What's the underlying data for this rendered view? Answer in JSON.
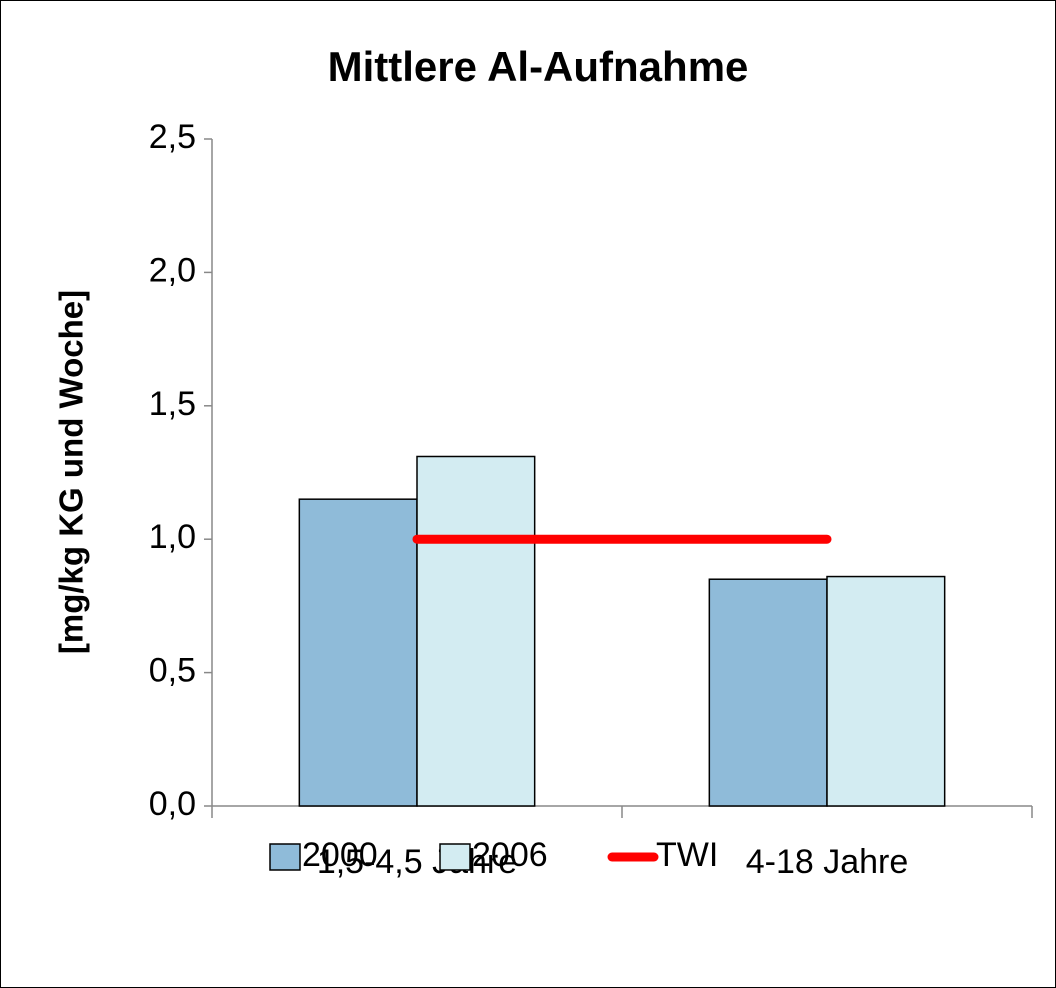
{
  "chart_data": {
    "type": "bar",
    "title": "Mittlere Al-Aufnahme",
    "y_label": "[mg/kg KG und Woche]",
    "categories": [
      "1,5-4,5 Jahre",
      "4-18 Jahre"
    ],
    "series": [
      {
        "name": "2000",
        "color": "#8fbbd9",
        "values": [
          1.15,
          0.85
        ]
      },
      {
        "name": "2006",
        "color": "#d3ecf2",
        "values": [
          1.31,
          0.86
        ]
      },
      {
        "name": "TWI",
        "color": "#ff0000",
        "type": "line",
        "values": [
          1.0,
          1.0
        ]
      }
    ],
    "ylim": [
      0,
      2.5
    ],
    "yticks": [
      {
        "value": 0,
        "label": "0,0"
      },
      {
        "value": 0.5,
        "label": "0,5"
      },
      {
        "value": 1.0,
        "label": "1,0"
      },
      {
        "value": 1.5,
        "label": "1,5"
      },
      {
        "value": 2.0,
        "label": "2,0"
      },
      {
        "value": 2.5,
        "label": "2,5"
      }
    ],
    "grid": false,
    "legend": "bottom"
  }
}
